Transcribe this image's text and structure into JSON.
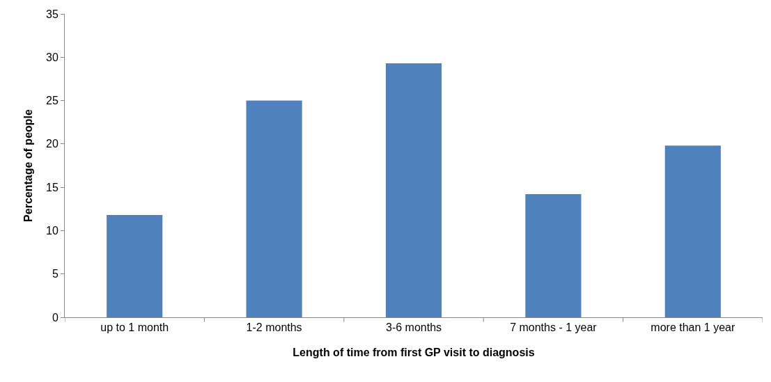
{
  "chart_data": {
    "type": "bar",
    "xlabel": "Length of time from first GP visit to diagnosis",
    "ylabel": "Percentage of people",
    "categories": [
      "up to 1 month",
      "1-2 months",
      "3-6 months",
      "7 months - 1 year",
      "more than 1 year"
    ],
    "values": [
      11.8,
      25,
      29.3,
      14.2,
      19.8
    ],
    "color": "#4f81bd",
    "ylim": [
      0,
      35
    ],
    "yticks": [
      0,
      5,
      10,
      15,
      20,
      25,
      30,
      35
    ],
    "grid": false
  }
}
